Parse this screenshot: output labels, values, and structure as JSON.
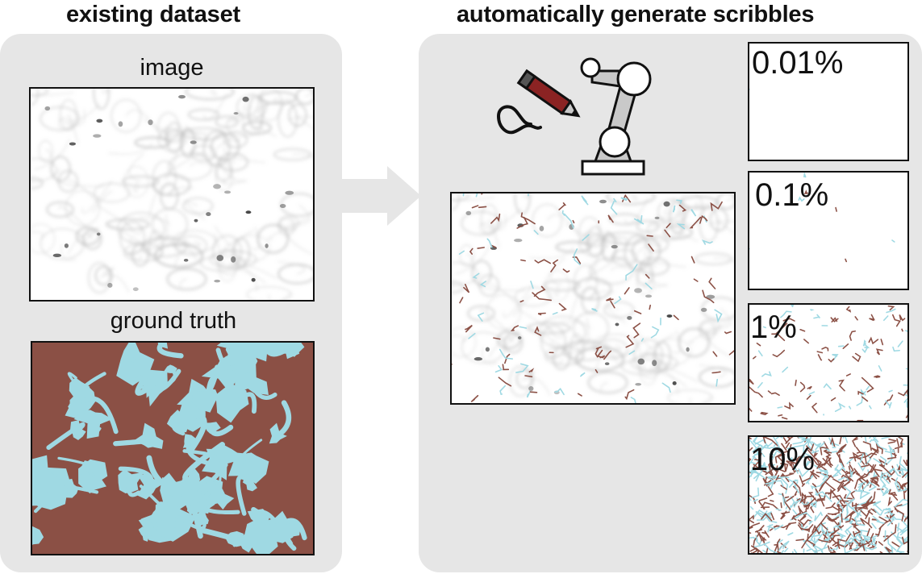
{
  "headings": {
    "left": "existing dataset",
    "right": "automatically generate scribbles"
  },
  "left_panel": {
    "image_label": "image",
    "ground_truth_label": "ground truth"
  },
  "right_panel": {
    "thumbnails": [
      {
        "label": "0.01%"
      },
      {
        "label": "0.1%"
      },
      {
        "label": "1%"
      },
      {
        "label": "10%"
      }
    ]
  },
  "colors": {
    "panel_bg": "#e6e6e6",
    "arrow": "#e6e6e6",
    "background_class": "#8b5045",
    "foreground_class": "#9fd9e3",
    "pen_body": "#8b2323",
    "robot_gray": "#c9c9c9"
  },
  "icons": {
    "robot": "robot-arm-icon",
    "arrow": "right-arrow-icon"
  }
}
